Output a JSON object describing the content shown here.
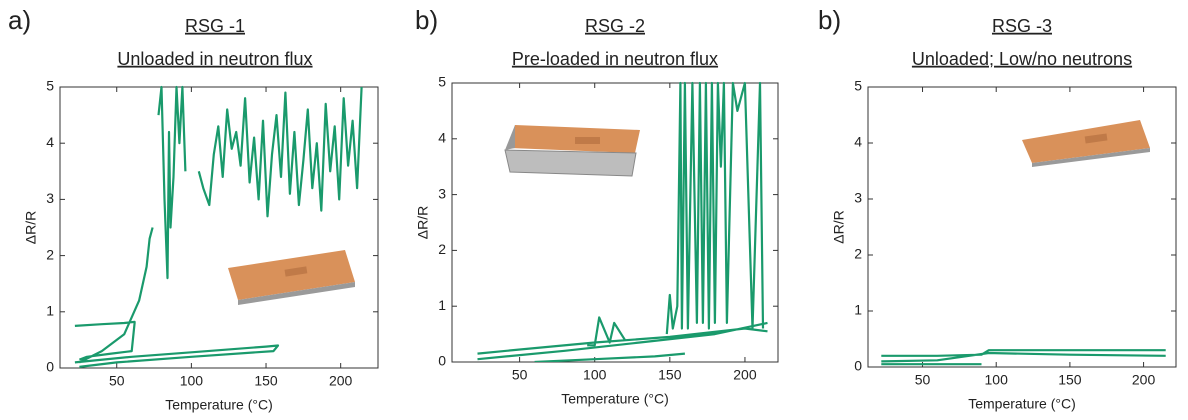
{
  "chart_data": [
    {
      "type": "line",
      "panel": "a)",
      "title": "RSG -1",
      "subtitle": "Unloaded in neutron flux",
      "x_label": "Temperature (°C)",
      "y_label": "ΔR/R",
      "color": "#1a9a6c",
      "xlim": [
        12,
        225
      ],
      "ylim": [
        0,
        5
      ],
      "xticks": [
        50,
        100,
        150,
        200
      ],
      "yticks": [
        0,
        1,
        2,
        3,
        4,
        5
      ],
      "x": [
        22,
        40,
        55,
        62,
        62,
        60,
        45,
        30,
        25,
        null,
        22,
        60,
        100,
        150,
        158,
        155,
        100,
        50,
        25,
        null,
        25,
        40,
        55,
        65,
        70,
        72,
        74,
        null,
        78,
        80,
        82,
        84,
        85,
        86,
        88,
        90,
        92,
        94,
        96,
        null,
        105,
        108,
        112,
        115,
        118,
        121,
        124,
        127,
        130,
        133,
        136,
        139,
        142,
        145,
        148,
        151,
        154,
        157,
        160,
        163,
        166,
        169,
        172,
        175,
        178,
        181,
        184,
        187,
        190,
        193,
        196,
        199,
        202,
        205,
        208,
        211,
        214
      ],
      "values": [
        0.75,
        0.78,
        0.8,
        0.82,
        0.8,
        0.3,
        0.25,
        0.2,
        0.15,
        null,
        0.1,
        0.2,
        0.28,
        0.38,
        0.4,
        0.3,
        0.2,
        0.1,
        0.02,
        null,
        0.1,
        0.3,
        0.6,
        1.2,
        1.8,
        2.3,
        2.5,
        null,
        4.5,
        5,
        3.0,
        1.6,
        4.2,
        2.5,
        3.4,
        5,
        4.0,
        5,
        3.5,
        null,
        3.5,
        3.2,
        2.9,
        3.8,
        4.3,
        3.4,
        4.6,
        3.9,
        4.2,
        3.6,
        4.8,
        3.3,
        4.1,
        3.0,
        4.4,
        2.7,
        3.8,
        4.5,
        3.4,
        4.9,
        3.1,
        4.2,
        2.9,
        3.7,
        4.6,
        3.2,
        4.0,
        2.8,
        4.7,
        3.5,
        4.3,
        3.0,
        4.8,
        3.6,
        4.4,
        3.2,
        5.0
      ]
    },
    {
      "type": "line",
      "panel": "b)",
      "title": "RSG -2",
      "subtitle": "Pre-loaded in neutron flux",
      "x_label": "Temperature (°C)",
      "y_label": "ΔR/R",
      "color": "#1a9a6c",
      "xlim": [
        5,
        222
      ],
      "ylim": [
        0,
        5
      ],
      "xticks": [
        50,
        100,
        150,
        200
      ],
      "yticks": [
        0,
        1,
        2,
        3,
        4,
        5
      ],
      "x": [
        22,
        60,
        100,
        150,
        200,
        215,
        null,
        22,
        80,
        130,
        180,
        215,
        null,
        95,
        100,
        103,
        110,
        113,
        120,
        null,
        60,
        100,
        140,
        160,
        null,
        148,
        150,
        152,
        155,
        157,
        158,
        160,
        162,
        165,
        168,
        170,
        172,
        174,
        176,
        178,
        180,
        182,
        184,
        186,
        188,
        192,
        195,
        200,
        205,
        210,
        212
      ],
      "values": [
        0.15,
        0.25,
        0.35,
        0.45,
        0.6,
        0.55,
        null,
        0.05,
        0.2,
        0.35,
        0.5,
        0.7,
        null,
        0.3,
        0.3,
        0.8,
        0.35,
        0.7,
        0.4,
        null,
        0.0,
        0.05,
        0.1,
        0.15,
        null,
        0.5,
        1.2,
        0.6,
        1.0,
        5,
        0.6,
        5,
        0.6,
        5,
        0.7,
        5,
        0.7,
        5,
        0.6,
        5,
        0.7,
        5,
        3.5,
        5,
        0.7,
        5,
        4.5,
        5,
        0.6,
        5,
        0.6
      ]
    },
    {
      "type": "line",
      "panel": "b)",
      "title": "RSG -3",
      "subtitle": "Unloaded; Low/no neutrons",
      "x_label": "Temperature (°C)",
      "y_label": "ΔR/R",
      "color": "#1a9a6c",
      "xlim": [
        13,
        222
      ],
      "ylim": [
        0,
        5
      ],
      "xticks": [
        50,
        100,
        150,
        200
      ],
      "yticks": [
        0,
        1,
        2,
        3,
        4,
        5
      ],
      "x": [
        22,
        60,
        90,
        95,
        150,
        215,
        null,
        22,
        60,
        95,
        150,
        215,
        null,
        22,
        90
      ],
      "values": [
        0.2,
        0.2,
        0.22,
        0.3,
        0.3,
        0.3,
        null,
        0.1,
        0.12,
        0.25,
        0.22,
        0.2,
        null,
        0.05,
        0.05
      ]
    }
  ]
}
